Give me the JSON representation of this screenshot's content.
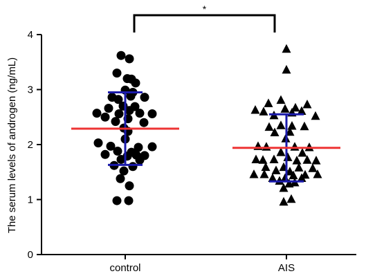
{
  "chart_data": {
    "type": "scatter",
    "ylabel": "The serum levels of androgen (ng/mL)",
    "xlabel": "",
    "ylim": [
      0,
      4
    ],
    "yticks": [
      0,
      1,
      2,
      3,
      4
    ],
    "categories": [
      "control",
      "AIS"
    ],
    "significance": {
      "label": "*",
      "between": [
        "control",
        "AIS"
      ]
    },
    "colors": {
      "points": "#000000",
      "mean": "#ee3333",
      "sd": "#1a1aaa"
    },
    "series": [
      {
        "category": "control",
        "marker": "circle",
        "mean": 2.29,
        "sd": 0.66,
        "points": [
          {
            "v": 3.62,
            "j": -0.3
          },
          {
            "v": 3.56,
            "j": 0.3
          },
          {
            "v": 3.3,
            "j": -0.6
          },
          {
            "v": 3.2,
            "j": 0.15
          },
          {
            "v": 3.19,
            "j": 0.45
          },
          {
            "v": 3.12,
            "j": 0.75
          },
          {
            "v": 2.99,
            "j": 0.0
          },
          {
            "v": 2.95,
            "j": 0.55
          },
          {
            "v": 2.88,
            "j": 0.4
          },
          {
            "v": 2.86,
            "j": -0.95
          },
          {
            "v": 2.86,
            "j": 1.4
          },
          {
            "v": 2.82,
            "j": -0.5
          },
          {
            "v": 2.7,
            "j": -0.15
          },
          {
            "v": 2.69,
            "j": 0.7
          },
          {
            "v": 2.66,
            "j": -1.2
          },
          {
            "v": 2.62,
            "j": 0.3
          },
          {
            "v": 2.57,
            "j": -2.05
          },
          {
            "v": 2.57,
            "j": 1.05
          },
          {
            "v": 2.56,
            "j": 1.95
          },
          {
            "v": 2.56,
            "j": -0.45
          },
          {
            "v": 2.5,
            "j": -1.45
          },
          {
            "v": 2.47,
            "j": 0.2
          },
          {
            "v": 2.42,
            "j": -0.7
          },
          {
            "v": 2.4,
            "j": 1.35
          },
          {
            "v": 2.3,
            "j": -0.1
          },
          {
            "v": 2.24,
            "j": 0.2
          },
          {
            "v": 2.1,
            "j": 0.0
          },
          {
            "v": 2.03,
            "j": -1.95
          },
          {
            "v": 1.97,
            "j": -1.05
          },
          {
            "v": 1.96,
            "j": 1.95
          },
          {
            "v": 1.95,
            "j": 0.95
          },
          {
            "v": 1.88,
            "j": -0.55
          },
          {
            "v": 1.86,
            "j": 0.45
          },
          {
            "v": 1.82,
            "j": -1.45
          },
          {
            "v": 1.81,
            "j": 0.8
          },
          {
            "v": 1.8,
            "j": 1.4
          },
          {
            "v": 1.79,
            "j": 0.15
          },
          {
            "v": 1.73,
            "j": -0.3
          },
          {
            "v": 1.72,
            "j": 1.05
          },
          {
            "v": 1.62,
            "j": -0.8
          },
          {
            "v": 1.6,
            "j": 0.55
          },
          {
            "v": 1.52,
            "j": -0.1
          },
          {
            "v": 1.38,
            "j": -0.35
          },
          {
            "v": 1.25,
            "j": 0.3
          },
          {
            "v": 0.98,
            "j": -0.6
          },
          {
            "v": 0.98,
            "j": 0.25
          }
        ]
      },
      {
        "category": "AIS",
        "marker": "triangle",
        "mean": 1.94,
        "sd": 0.61,
        "points": [
          {
            "v": 3.73,
            "j": 0.0
          },
          {
            "v": 3.35,
            "j": 0.0
          },
          {
            "v": 2.8,
            "j": -0.4
          },
          {
            "v": 2.74,
            "j": -1.3
          },
          {
            "v": 2.72,
            "j": 1.5
          },
          {
            "v": 2.66,
            "j": 0.65
          },
          {
            "v": 2.64,
            "j": -0.1
          },
          {
            "v": 2.62,
            "j": -2.25
          },
          {
            "v": 2.59,
            "j": -1.65
          },
          {
            "v": 2.6,
            "j": 1.1
          },
          {
            "v": 2.57,
            "j": 0.4
          },
          {
            "v": 2.52,
            "j": -0.9
          },
          {
            "v": 2.51,
            "j": 2.1
          },
          {
            "v": 2.34,
            "j": -0.4
          },
          {
            "v": 2.31,
            "j": -1.25
          },
          {
            "v": 2.33,
            "j": 0.4
          },
          {
            "v": 2.32,
            "j": 1.3
          },
          {
            "v": 2.22,
            "j": 0.25
          },
          {
            "v": 2.21,
            "j": -0.85
          },
          {
            "v": 2.1,
            "j": -0.05
          },
          {
            "v": 1.96,
            "j": -2.05
          },
          {
            "v": 1.95,
            "j": -1.45
          },
          {
            "v": 1.95,
            "j": 0.6
          },
          {
            "v": 1.94,
            "j": 1.65
          },
          {
            "v": 1.85,
            "j": -0.4
          },
          {
            "v": 1.84,
            "j": 1.15
          },
          {
            "v": 1.76,
            "j": 0.1
          },
          {
            "v": 1.72,
            "j": -2.2
          },
          {
            "v": 1.71,
            "j": -1.7
          },
          {
            "v": 1.72,
            "j": -0.9
          },
          {
            "v": 1.7,
            "j": 0.75
          },
          {
            "v": 1.71,
            "j": 1.5
          },
          {
            "v": 1.7,
            "j": 2.15
          },
          {
            "v": 1.58,
            "j": -1.5
          },
          {
            "v": 1.58,
            "j": -0.2
          },
          {
            "v": 1.57,
            "j": 0.9
          },
          {
            "v": 1.56,
            "j": 1.9
          },
          {
            "v": 1.52,
            "j": -0.75
          },
          {
            "v": 1.5,
            "j": 0.25
          },
          {
            "v": 1.45,
            "j": -2.35
          },
          {
            "v": 1.45,
            "j": -1.6
          },
          {
            "v": 1.43,
            "j": 0.5
          },
          {
            "v": 1.44,
            "j": 1.35
          },
          {
            "v": 1.45,
            "j": 2.25
          },
          {
            "v": 1.38,
            "j": -1.0
          },
          {
            "v": 1.38,
            "j": -0.1
          },
          {
            "v": 1.38,
            "j": 1.1
          },
          {
            "v": 1.33,
            "j": -0.5
          },
          {
            "v": 1.3,
            "j": 0.6
          },
          {
            "v": 1.28,
            "j": 0.2
          },
          {
            "v": 1.2,
            "j": -0.2
          },
          {
            "v": 1.0,
            "j": 0.35
          },
          {
            "v": 0.95,
            "j": -0.2
          }
        ]
      }
    ]
  }
}
